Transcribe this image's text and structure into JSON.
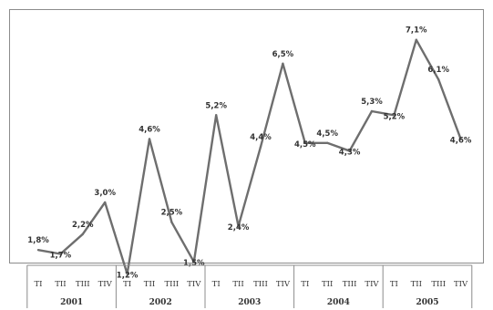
{
  "chart_data": {
    "type": "line",
    "quarters": [
      "TI",
      "TII",
      "TIII",
      "TIV"
    ],
    "years": [
      "2001",
      "2002",
      "2003",
      "2004",
      "2005"
    ],
    "series": [
      {
        "values": [
          1.8,
          1.7,
          2.2,
          3.0,
          1.2,
          4.6,
          2.5,
          1.5,
          5.2,
          2.4,
          4.4,
          6.5,
          4.5,
          4.5,
          4.3,
          5.3,
          5.2,
          7.1,
          6.1,
          4.6
        ],
        "labels": [
          "1,8%",
          "1,7%",
          "2,2%",
          "3,0%",
          "1,2%",
          "4,6%",
          "2,5%",
          "1,5%",
          "5,2%",
          "2,4%",
          "4,4%",
          "6,5%",
          "4,5%",
          "4,5%",
          "4,3%",
          "5,3%",
          "5,2%",
          "7,1%",
          "6,1%",
          "4,6%"
        ]
      }
    ],
    "ylim": [
      0.7,
      7.6
    ],
    "grid": false,
    "legend": "none"
  }
}
